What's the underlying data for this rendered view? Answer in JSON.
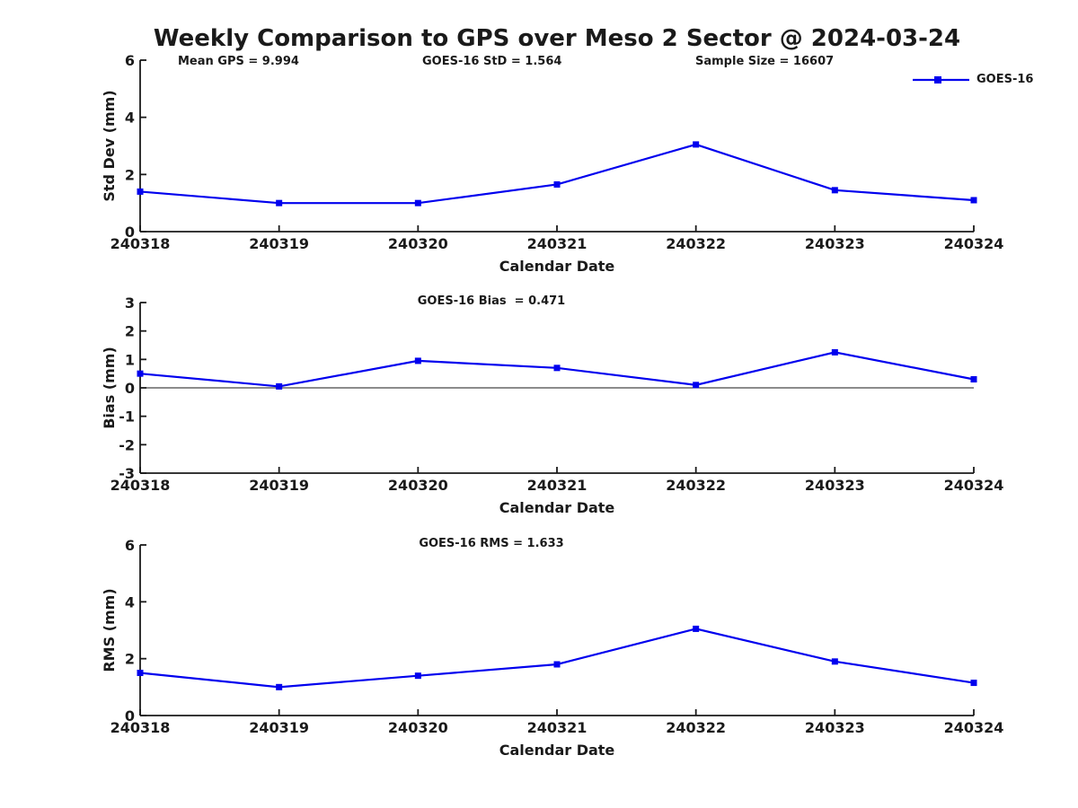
{
  "figure": {
    "title": "Weekly Comparison to GPS over Meso 2 Sector @ 2024-03-24",
    "background": "#ffffff"
  },
  "colors": {
    "line": "#0000ee",
    "axis": "#1a1a1a",
    "text": "#1a1a1a"
  },
  "legend": {
    "label": "GOES-16",
    "marker": "filled-square",
    "color": "#0000ee",
    "position": "top-right"
  },
  "chart_data": [
    {
      "type": "line",
      "ylabel": "Std Dev (mm)",
      "xlabel": "Calendar Date",
      "categories": [
        "240318",
        "240319",
        "240320",
        "240321",
        "240322",
        "240323",
        "240324"
      ],
      "series": [
        {
          "name": "GOES-16",
          "values": [
            1.4,
            1.0,
            1.0,
            1.65,
            3.05,
            1.45,
            1.1
          ]
        }
      ],
      "ylim": [
        0,
        6
      ],
      "yticks": [
        0,
        2,
        4,
        6
      ],
      "grid": false,
      "legend_position": "top-right",
      "annotations": [
        "Mean GPS = 9.994",
        "GOES-16 StD = 1.564",
        "Sample Size = 16607"
      ]
    },
    {
      "type": "line",
      "ylabel": "Bias (mm)",
      "xlabel": "Calendar Date",
      "categories": [
        "240318",
        "240319",
        "240320",
        "240321",
        "240322",
        "240323",
        "240324"
      ],
      "series": [
        {
          "name": "GOES-16",
          "values": [
            0.5,
            0.05,
            0.95,
            0.7,
            0.1,
            1.25,
            0.3
          ]
        }
      ],
      "ylim": [
        -3,
        3
      ],
      "yticks": [
        -3,
        -2,
        -1,
        0,
        1,
        2,
        3
      ],
      "zero_line": true,
      "grid": false,
      "annotations": [
        "GOES-16 Bias  = 0.471"
      ]
    },
    {
      "type": "line",
      "ylabel": "RMS (mm)",
      "xlabel": "Calendar Date",
      "categories": [
        "240318",
        "240319",
        "240320",
        "240321",
        "240322",
        "240323",
        "240324"
      ],
      "series": [
        {
          "name": "GOES-16",
          "values": [
            1.5,
            1.0,
            1.4,
            1.8,
            3.05,
            1.9,
            1.15
          ]
        }
      ],
      "ylim": [
        0,
        6
      ],
      "yticks": [
        0,
        2,
        4,
        6
      ],
      "grid": false,
      "annotations": [
        "GOES-16 RMS = 1.633"
      ]
    }
  ]
}
